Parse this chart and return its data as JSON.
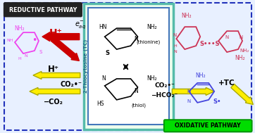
{
  "bg_color": "#e8f0ff",
  "outer_border_color": "#2233bb",
  "center_box_bg": "#eeffee",
  "center_box_border": "#55bbaa",
  "inner_box_bg": "#ffffff",
  "inner_box_border": "#4477bb",
  "reductive_label": "REDUCTIVE PATHWAY",
  "reductive_bg": "#222222",
  "reductive_fg": "#ffffff",
  "oxidative_label": "OXIDATIVE PATHWAY",
  "oxidative_bg": "#00dd00",
  "oxidative_fg": "#000000",
  "center_title": "2-Thiocytosine (TC)",
  "title_color": "#226688",
  "magenta_color": "#ee44ee",
  "red_color": "#cc0000",
  "yellow_color": "#ffee00",
  "yellow_edge": "#aaaa00",
  "blue_color": "#4444dd",
  "pink_color": "#cc3355",
  "black": "#000000",
  "white": "#ffffff"
}
